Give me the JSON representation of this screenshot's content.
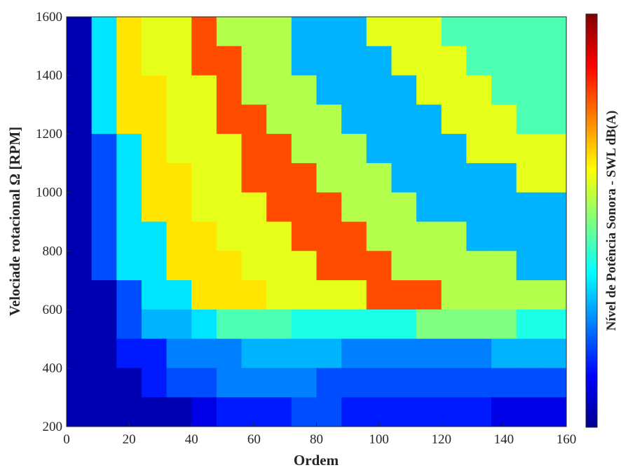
{
  "chart_data": {
    "type": "heatmap",
    "xlabel": "Ordem",
    "ylabel": "Velociade rotacional Ω [RPM]",
    "colorbar_label": "Nível de Potência Sonora - SWL dB(A)",
    "colormap": "jet",
    "xlim": [
      0,
      160
    ],
    "ylim": [
      200,
      1600
    ],
    "zlim": [
      0,
      1
    ],
    "xticks": [
      0,
      20,
      40,
      60,
      80,
      100,
      120,
      140,
      160
    ],
    "yticks": [
      200,
      400,
      600,
      800,
      1000,
      1200,
      1400,
      1600
    ],
    "x": [
      4,
      12,
      20,
      28,
      36,
      44,
      52,
      60,
      68,
      76,
      84,
      92,
      100,
      108,
      116,
      124,
      132,
      140,
      148,
      156
    ],
    "y": [
      1550,
      1450,
      1350,
      1250,
      1150,
      1050,
      950,
      850,
      750,
      650,
      550,
      450,
      350,
      250
    ],
    "values": [
      [
        0.05,
        0.35,
        0.65,
        0.6,
        0.6,
        0.8,
        0.55,
        0.55,
        0.55,
        0.3,
        0.3,
        0.3,
        0.6,
        0.6,
        0.6,
        0.45,
        0.45,
        0.45,
        0.45,
        0.45
      ],
      [
        0.05,
        0.35,
        0.65,
        0.6,
        0.6,
        0.8,
        0.8,
        0.55,
        0.55,
        0.3,
        0.3,
        0.3,
        0.3,
        0.6,
        0.6,
        0.6,
        0.45,
        0.45,
        0.45,
        0.45
      ],
      [
        0.05,
        0.35,
        0.65,
        0.65,
        0.6,
        0.6,
        0.8,
        0.55,
        0.55,
        0.55,
        0.3,
        0.3,
        0.3,
        0.3,
        0.6,
        0.6,
        0.6,
        0.45,
        0.45,
        0.45
      ],
      [
        0.05,
        0.35,
        0.65,
        0.65,
        0.6,
        0.6,
        0.8,
        0.8,
        0.55,
        0.55,
        0.55,
        0.3,
        0.3,
        0.3,
        0.3,
        0.6,
        0.6,
        0.6,
        0.45,
        0.45
      ],
      [
        0.05,
        0.2,
        0.35,
        0.65,
        0.6,
        0.6,
        0.6,
        0.8,
        0.8,
        0.55,
        0.55,
        0.55,
        0.3,
        0.3,
        0.3,
        0.3,
        0.6,
        0.6,
        0.6,
        0.6
      ],
      [
        0.05,
        0.2,
        0.35,
        0.65,
        0.65,
        0.6,
        0.6,
        0.8,
        0.8,
        0.8,
        0.55,
        0.55,
        0.55,
        0.3,
        0.3,
        0.3,
        0.3,
        0.3,
        0.6,
        0.6
      ],
      [
        0.05,
        0.2,
        0.35,
        0.65,
        0.65,
        0.6,
        0.6,
        0.6,
        0.8,
        0.8,
        0.8,
        0.55,
        0.55,
        0.55,
        0.3,
        0.3,
        0.3,
        0.3,
        0.3,
        0.3
      ],
      [
        0.05,
        0.2,
        0.35,
        0.35,
        0.65,
        0.65,
        0.6,
        0.6,
        0.6,
        0.8,
        0.8,
        0.8,
        0.55,
        0.55,
        0.55,
        0.55,
        0.3,
        0.3,
        0.3,
        0.3
      ],
      [
        0.05,
        0.2,
        0.35,
        0.35,
        0.65,
        0.65,
        0.65,
        0.6,
        0.6,
        0.6,
        0.8,
        0.8,
        0.8,
        0.55,
        0.55,
        0.55,
        0.55,
        0.55,
        0.3,
        0.3
      ],
      [
        0.05,
        0.05,
        0.2,
        0.35,
        0.35,
        0.65,
        0.65,
        0.65,
        0.6,
        0.6,
        0.6,
        0.6,
        0.8,
        0.8,
        0.8,
        0.55,
        0.55,
        0.55,
        0.55,
        0.55
      ],
      [
        0.05,
        0.05,
        0.2,
        0.3,
        0.3,
        0.35,
        0.45,
        0.45,
        0.45,
        0.4,
        0.4,
        0.4,
        0.4,
        0.4,
        0.5,
        0.5,
        0.5,
        0.5,
        0.4,
        0.4
      ],
      [
        0.05,
        0.05,
        0.15,
        0.15,
        0.25,
        0.25,
        0.25,
        0.3,
        0.3,
        0.3,
        0.3,
        0.25,
        0.25,
        0.25,
        0.25,
        0.25,
        0.25,
        0.3,
        0.3,
        0.3
      ],
      [
        0.05,
        0.05,
        0.05,
        0.15,
        0.2,
        0.2,
        0.25,
        0.25,
        0.25,
        0.25,
        0.2,
        0.2,
        0.2,
        0.2,
        0.2,
        0.2,
        0.2,
        0.2,
        0.2,
        0.2
      ],
      [
        0.05,
        0.05,
        0.05,
        0.05,
        0.05,
        0.1,
        0.15,
        0.15,
        0.15,
        0.2,
        0.2,
        0.15,
        0.15,
        0.15,
        0.15,
        0.15,
        0.15,
        0.1,
        0.1,
        0.1
      ]
    ]
  }
}
